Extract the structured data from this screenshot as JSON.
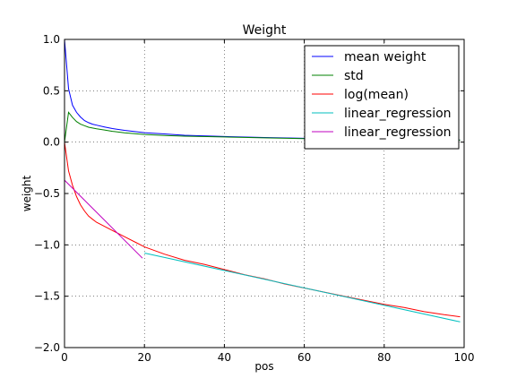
{
  "chart_data": {
    "type": "line",
    "title": "Weight",
    "xlabel": "pos",
    "ylabel": "weight",
    "xlim": [
      0,
      100
    ],
    "ylim": [
      -2.0,
      1.0
    ],
    "xticks": [
      0,
      20,
      40,
      60,
      80,
      100
    ],
    "xtick_labels": [
      "0",
      "20",
      "40",
      "60",
      "80",
      "100"
    ],
    "yticks": [
      1.0,
      0.5,
      0.0,
      -0.5,
      -1.0,
      -1.5,
      -2.0
    ],
    "ytick_labels": [
      "1.0",
      "0.5",
      "0.0",
      "−0.5",
      "−1.0",
      "−1.5",
      "−2.0"
    ],
    "grid": true,
    "legend_position": "upper-right",
    "series": [
      {
        "name": "mean weight",
        "color": "#0000ff",
        "x": [
          0,
          1,
          2,
          3,
          4,
          5,
          6,
          7,
          8,
          10,
          12,
          15,
          20,
          25,
          30,
          40,
          50,
          60,
          70,
          80,
          90,
          99
        ],
        "y": [
          1.0,
          0.52,
          0.36,
          0.29,
          0.245,
          0.21,
          0.19,
          0.175,
          0.165,
          0.148,
          0.132,
          0.115,
          0.092,
          0.08,
          0.067,
          0.055,
          0.045,
          0.037,
          0.031,
          0.026,
          0.022,
          0.02
        ]
      },
      {
        "name": "std",
        "color": "#008000",
        "x": [
          0,
          1,
          2,
          3,
          4,
          5,
          6,
          8,
          10,
          12,
          15,
          20,
          25,
          30,
          40,
          50,
          60,
          70,
          80,
          90,
          99
        ],
        "y": [
          0.0,
          0.29,
          0.24,
          0.2,
          0.175,
          0.16,
          0.145,
          0.13,
          0.118,
          0.105,
          0.09,
          0.075,
          0.065,
          0.058,
          0.05,
          0.042,
          0.035,
          0.03,
          0.026,
          0.022,
          0.02
        ]
      },
      {
        "name": "log(mean)",
        "color": "#ff0000",
        "x": [
          0,
          1,
          2,
          3,
          4,
          5,
          6,
          7,
          8,
          10,
          12,
          15,
          18,
          20,
          25,
          30,
          35,
          40,
          45,
          50,
          55,
          60,
          65,
          70,
          75,
          80,
          85,
          90,
          95,
          99
        ],
        "y": [
          0.0,
          -0.28,
          -0.42,
          -0.53,
          -0.61,
          -0.67,
          -0.72,
          -0.75,
          -0.78,
          -0.82,
          -0.86,
          -0.92,
          -0.98,
          -1.02,
          -1.09,
          -1.15,
          -1.19,
          -1.24,
          -1.29,
          -1.33,
          -1.38,
          -1.42,
          -1.46,
          -1.5,
          -1.54,
          -1.58,
          -1.61,
          -1.65,
          -1.68,
          -1.7
        ]
      },
      {
        "name": "linear_regression",
        "color": "#00bfbf",
        "x": [
          20,
          99
        ],
        "y": [
          -1.08,
          -1.75
        ]
      },
      {
        "name": "linear_regression",
        "color": "#bf00bf",
        "x": [
          0,
          19.5
        ],
        "y": [
          -0.37,
          -1.13
        ]
      }
    ]
  }
}
